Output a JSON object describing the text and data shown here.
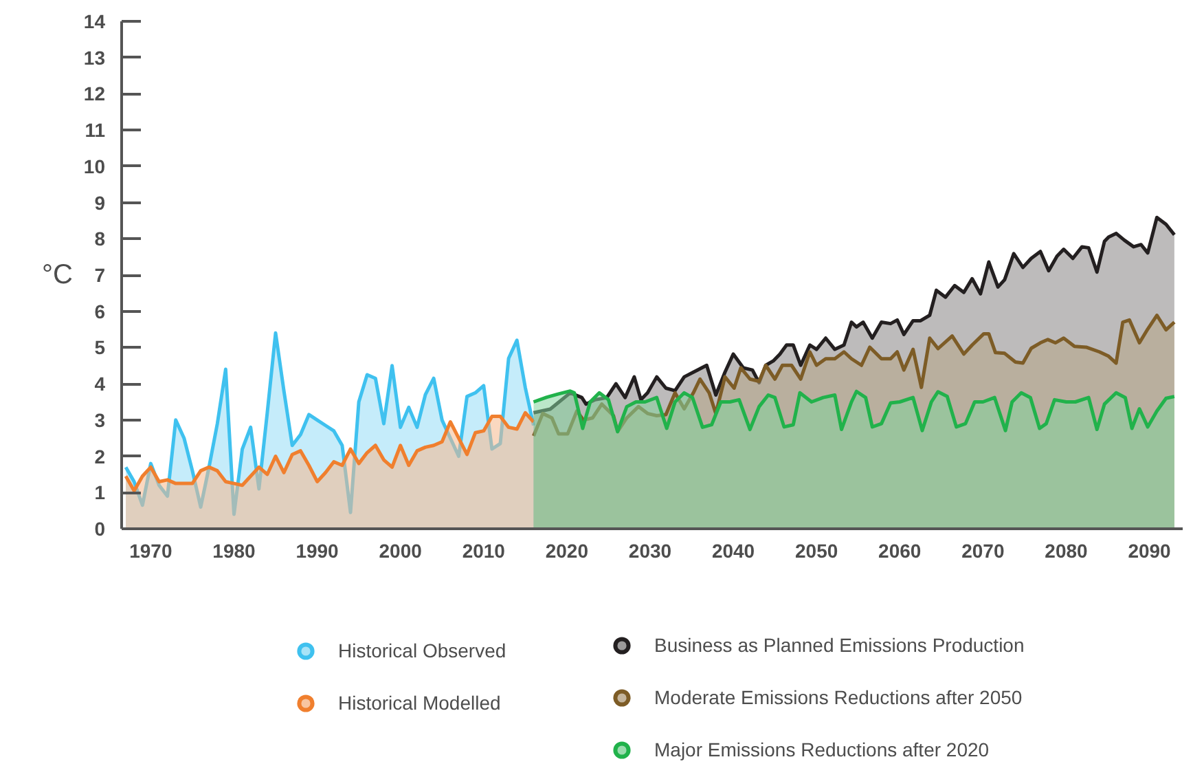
{
  "chart_data": {
    "type": "area",
    "ylabel": "°C",
    "xlim": [
      1966.5,
      2094
    ],
    "ylim": [
      0,
      14
    ],
    "xticks": [
      1970,
      1980,
      1990,
      2000,
      2010,
      2020,
      2030,
      2040,
      2050,
      2060,
      2070,
      2080,
      2090
    ],
    "yticks": [
      0,
      1,
      2,
      3,
      4,
      5,
      6,
      7,
      8,
      9,
      10,
      11,
      12,
      13,
      14
    ],
    "grid": false,
    "legend": "bottom",
    "series": [
      {
        "name": "Historical Observed",
        "color": "#3fc1ef",
        "x": [
          1967,
          1968,
          1969,
          1970,
          1971,
          1972,
          1973,
          1974,
          1975,
          1976,
          1977,
          1978,
          1979,
          1980,
          1981,
          1982,
          1983,
          1984,
          1985,
          1986,
          1987,
          1988,
          1989,
          1990,
          1991,
          1992,
          1993,
          1994,
          1995,
          1996,
          1997,
          1998,
          1999,
          2000,
          2001,
          2002,
          2003,
          2004,
          2005,
          2006,
          2007,
          2008,
          2009,
          2010,
          2011,
          2012,
          2013,
          2014,
          2015,
          2016
        ],
        "values": [
          1.7,
          1.3,
          0.65,
          1.8,
          1.2,
          0.9,
          3.0,
          2.5,
          1.6,
          0.6,
          1.7,
          2.9,
          4.4,
          0.4,
          2.2,
          2.8,
          1.1,
          3.2,
          5.4,
          3.8,
          2.3,
          2.6,
          3.15,
          3.0,
          2.85,
          2.7,
          2.3,
          0.45,
          3.5,
          4.25,
          4.15,
          2.9,
          4.5,
          2.8,
          3.35,
          2.8,
          3.7,
          4.15,
          3.0,
          2.5,
          2.0,
          3.65,
          3.75,
          3.95,
          2.2,
          2.35,
          4.7,
          5.2,
          3.9,
          2.85
        ]
      },
      {
        "name": "Historical Modelled",
        "color": "#f07f2e",
        "x": [
          1967,
          1968,
          1969,
          1970,
          1971,
          1972,
          1973,
          1974,
          1975,
          1976,
          1977,
          1978,
          1979,
          1980,
          1981,
          1982,
          1983,
          1984,
          1985,
          1986,
          1987,
          1988,
          1989,
          1990,
          1991,
          1992,
          1993,
          1994,
          1995,
          1996,
          1997,
          1998,
          1999,
          2000,
          2001,
          2002,
          2003,
          2004,
          2005,
          2006,
          2007,
          2008,
          2009,
          2010,
          2011,
          2012,
          2013,
          2014,
          2015,
          2016
        ],
        "values": [
          1.45,
          1.05,
          1.45,
          1.7,
          1.3,
          1.35,
          1.25,
          1.25,
          1.25,
          1.6,
          1.7,
          1.6,
          1.3,
          1.25,
          1.2,
          1.45,
          1.7,
          1.5,
          2.0,
          1.55,
          2.05,
          2.15,
          1.75,
          1.3,
          1.55,
          1.85,
          1.75,
          2.2,
          1.8,
          2.1,
          2.3,
          1.9,
          1.7,
          2.3,
          1.75,
          2.15,
          2.25,
          2.3,
          2.4,
          2.95,
          2.5,
          2.05,
          2.65,
          2.7,
          3.1,
          3.1,
          2.8,
          2.75,
          3.2,
          2.95
        ]
      },
      {
        "name": "Business as Planned Emissions Production",
        "color": "#231f20",
        "x": [
          2016,
          2018,
          2020.4,
          2021.8,
          2022.3,
          2023.4,
          2024.8,
          2025.9,
          2027.0,
          2028.1,
          2028.9,
          2029.7,
          2030.8,
          2031.9,
          2033.0,
          2034.1,
          2035.2,
          2036.8,
          2037.9,
          2039.0,
          2040.0,
          2041.2,
          2042.3,
          2043.1,
          2043.9,
          2044.8,
          2045.6,
          2046.4,
          2047.2,
          2048.1,
          2049.2,
          2050.0,
          2051.1,
          2052.2,
          2053.3,
          2054.2,
          2054.8,
          2055.6,
          2056.7,
          2057.8,
          2058.9,
          2059.7,
          2060.5,
          2061.6,
          2062.5,
          2063.6,
          2064.4,
          2065.5,
          2066.6,
          2067.7,
          2068.7,
          2069.7,
          2070.7,
          2071.8,
          2072.6,
          2073.7,
          2074.8,
          2075.8,
          2076.9,
          2077.9,
          2078.9,
          2079.7,
          2080.8,
          2081.9,
          2082.7,
          2083.7,
          2084.6,
          2085.1,
          2086.0,
          2087.0,
          2088.1,
          2089.0,
          2089.8,
          2090.9,
          2092.0,
          2093.0
        ],
        "values": [
          3.2,
          3.3,
          3.75,
          3.62,
          3.44,
          3.56,
          3.62,
          4.0,
          3.62,
          4.19,
          3.56,
          3.75,
          4.19,
          3.88,
          3.81,
          4.19,
          4.32,
          4.51,
          3.69,
          4.32,
          4.82,
          4.44,
          4.38,
          4.03,
          4.51,
          4.63,
          4.82,
          5.07,
          5.07,
          4.51,
          5.07,
          4.95,
          5.26,
          4.95,
          5.07,
          5.7,
          5.57,
          5.7,
          5.26,
          5.7,
          5.66,
          5.76,
          5.36,
          5.74,
          5.74,
          5.89,
          6.58,
          6.39,
          6.71,
          6.52,
          6.9,
          6.48,
          7.36,
          6.67,
          6.87,
          7.59,
          7.21,
          7.46,
          7.65,
          7.12,
          7.52,
          7.71,
          7.46,
          7.78,
          7.75,
          7.08,
          7.93,
          8.05,
          8.15,
          7.96,
          7.78,
          7.84,
          7.61,
          8.59,
          8.4,
          8.11
        ]
      },
      {
        "name": "Moderate Emissions Reductions after 2050",
        "color": "#7d5c26",
        "x": [
          2016,
          2017.1,
          2018.2,
          2019,
          2020.1,
          2021.2,
          2022,
          2023.1,
          2024.2,
          2025.6,
          2026.1,
          2027.2,
          2028.6,
          2029.7,
          2030.8,
          2031.9,
          2033,
          2034.1,
          2035.2,
          2036,
          2037.1,
          2037.9,
          2039,
          2040.1,
          2040.9,
          2042,
          2043.1,
          2043.9,
          2045,
          2045.9,
          2047,
          2048.1,
          2049.2,
          2050,
          2051.1,
          2052.2,
          2053.3,
          2054.2,
          2055.4,
          2056.4,
          2057.8,
          2058.9,
          2059.7,
          2060.5,
          2061.6,
          2062.6,
          2063.6,
          2064.6,
          2066.3,
          2067.7,
          2068.7,
          2070.1,
          2070.7,
          2071.5,
          2072.6,
          2073.9,
          2074.8,
          2075.8,
          2076.9,
          2077.8,
          2078.7,
          2079.7,
          2081,
          2082.4,
          2084,
          2085.1,
          2086,
          2086.8,
          2087.6,
          2088.8,
          2089.8,
          2090.9,
          2092,
          2093
        ],
        "values": [
          2.56,
          3.18,
          3.06,
          2.62,
          2.62,
          3.25,
          3.0,
          3.06,
          3.44,
          3.12,
          2.68,
          3.06,
          3.37,
          3.18,
          3.12,
          3.15,
          3.75,
          3.31,
          3.75,
          4.13,
          3.75,
          3.18,
          4.19,
          3.88,
          4.44,
          4.13,
          4.07,
          4.51,
          4.13,
          4.51,
          4.51,
          4.13,
          4.88,
          4.51,
          4.69,
          4.69,
          4.88,
          4.69,
          4.51,
          5.01,
          4.69,
          4.69,
          4.88,
          4.38,
          4.95,
          3.9,
          5.26,
          4.97,
          5.32,
          4.82,
          5.07,
          5.38,
          5.38,
          4.86,
          4.84,
          4.6,
          4.57,
          4.98,
          5.13,
          5.22,
          5.13,
          5.26,
          5.03,
          5.01,
          4.88,
          4.76,
          4.57,
          5.7,
          5.76,
          5.13,
          5.51,
          5.89,
          5.49,
          5.7
        ]
      },
      {
        "name": "Major Emissions Reductions after 2020",
        "color": "#21b24b",
        "x": [
          2016,
          2017.6,
          2019,
          2020.4,
          2020.9,
          2021.9,
          2022.8,
          2023.9,
          2025,
          2026.1,
          2027.2,
          2028.3,
          2029.4,
          2030.8,
          2032,
          2033,
          2034.1,
          2035.1,
          2036.3,
          2037.4,
          2038.5,
          2039.6,
          2040.7,
          2042,
          2043.1,
          2044.2,
          2045,
          2046.1,
          2047.2,
          2048,
          2049.4,
          2050.8,
          2052.2,
          2053,
          2054.2,
          2054.8,
          2055.9,
          2056.7,
          2057.8,
          2058.9,
          2060,
          2061.6,
          2062.7,
          2063.8,
          2064.6,
          2065.7,
          2066.8,
          2067.9,
          2069,
          2070,
          2071.4,
          2072.7,
          2073.5,
          2074.6,
          2075.7,
          2076.8,
          2077.6,
          2078.6,
          2080,
          2081.1,
          2082.7,
          2083.7,
          2084.6,
          2086,
          2087.1,
          2087.9,
          2088.8,
          2089.8,
          2090.9,
          2092,
          2093
        ],
        "values": [
          3.5,
          3.63,
          3.72,
          3.8,
          3.75,
          2.77,
          3.5,
          3.75,
          3.56,
          2.68,
          3.37,
          3.5,
          3.5,
          3.62,
          2.77,
          3.5,
          3.75,
          3.62,
          2.8,
          2.87,
          3.5,
          3.5,
          3.56,
          2.74,
          3.37,
          3.69,
          3.62,
          2.81,
          2.87,
          3.75,
          3.5,
          3.62,
          3.69,
          2.74,
          3.5,
          3.79,
          3.62,
          2.81,
          2.9,
          3.47,
          3.5,
          3.62,
          2.71,
          3.5,
          3.78,
          3.65,
          2.81,
          2.9,
          3.5,
          3.5,
          3.62,
          2.71,
          3.5,
          3.75,
          3.62,
          2.77,
          2.9,
          3.56,
          3.5,
          3.5,
          3.62,
          2.74,
          3.44,
          3.75,
          3.62,
          2.77,
          3.31,
          2.81,
          3.25,
          3.6,
          3.65
        ]
      }
    ]
  }
}
